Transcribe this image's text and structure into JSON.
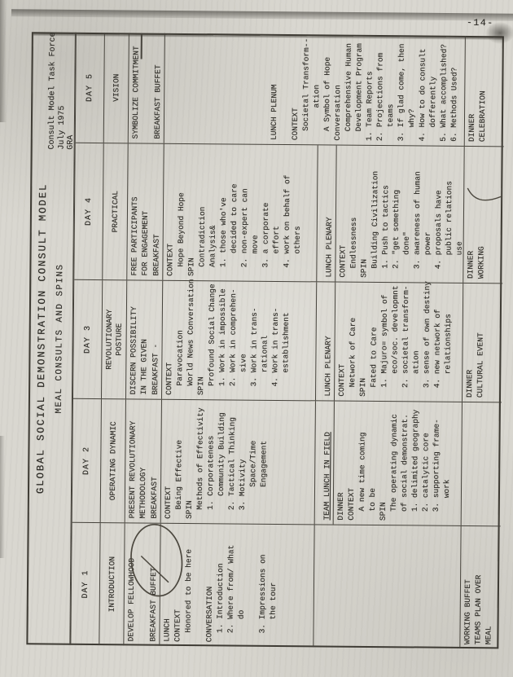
{
  "page_number": "-14-",
  "header": {
    "title": "GLOBAL SOCIAL DEMONSTRATION CONSULT MODEL",
    "subtitle": "MEAL CONSULTS AND SPINS",
    "credit_lines": [
      "Consult Model Task Force",
      "July 1975",
      "GRA"
    ]
  },
  "table": {
    "days": [
      {
        "label": "DAY 1",
        "theme": [
          "INTRODUCTION"
        ],
        "strategy": [
          "DEVELOP FELLOWHOOD"
        ],
        "meal_label": "BREAKFAST BUFFET",
        "meal_label_annotation": "hand-drawn-circle",
        "breakfast": [
          "LUNCH",
          "CONTEXT",
          "  Honored to be here",
          "",
          "CONVERSATION",
          "  1. Introduction",
          "  2. Where from/ What",
          "     do",
          "",
          "  3. Impressions on",
          "     the tour"
        ],
        "lunch_label": "",
        "lunch": [],
        "lunch_zone_empty": true,
        "dinner": [
          "WORKING BUFFET",
          "TEAMS PLAN OVER",
          "MEAL"
        ]
      },
      {
        "label": "DAY 2",
        "theme": [
          "OPERATING DYNAMIC"
        ],
        "strategy": [
          "PRESENT REVOLUTIONARY",
          "METHODOLOGY"
        ],
        "meal_label": "BREAKFAST",
        "breakfast": [
          "CONTEXT",
          "  Being Effective",
          "SPIN",
          "  Methods of Effectivity",
          "  1. Corporateness",
          "     Community Building",
          "  2. Tactical Thinking",
          "  3. Motivity",
          "       Space/Time",
          "       Engagement"
        ],
        "lunch_label": "TEAM LUNCH IN FIELD",
        "lunch_label_underline": true,
        "lunch": [
          "DINNER",
          "CONTEXT",
          "  A new time coming",
          "  to be",
          "SPIN",
          "  The operating dynamic",
          "  of social demonstrat.",
          "  1. delimited geography",
          "  2. catalytic core",
          "  3. supporting frame-",
          "     work"
        ],
        "dinner": []
      },
      {
        "label": "DAY 3",
        "theme": [
          "REVOLUTIONARY",
          "POSTURE"
        ],
        "strategy": [
          "DISCERN POSSIBILITY",
          "IN THE GIVEN"
        ],
        "meal_label": "BREAKFAST -",
        "breakfast": [
          "CONTEXT",
          "  Paravocation",
          "  World News Conversation",
          "SPIN",
          "  Profound Social Change",
          "  1. Work in impossible",
          "  2. Work in comprehen-",
          "     sive",
          "  3. Work in trans-",
          "     rational",
          "  4. Work in trans-",
          "     establishment"
        ],
        "lunch_label": "LUNCH PLENARY",
        "lunch": [
          "CONTEXT",
          "  Network of Care",
          "SPIN",
          "  Fated to Care",
          "  1. Majuro= symbol of",
          "     eco/soc. developmnt",
          "  2. societal transform-",
          "     ation",
          "  3. sense of own destiny",
          "  4. new network of",
          "     relationships"
        ],
        "dinner": [
          "DINNER",
          "CULTURAL EVENT"
        ]
      },
      {
        "label": "DAY 4",
        "theme": [
          "PRACTICAL"
        ],
        "strategy": [
          "FREE PARTICIPANTS",
          "FOR ENGAGEMENT"
        ],
        "meal_label": "BREAKFAST",
        "breakfast": [
          "CONTEXT",
          "  Hope Beyond Hope",
          "SPIN",
          "  Contradiction",
          "  Analysis&",
          "  1. those who've",
          "     decided to care",
          "  2. non-expert can",
          "     move",
          "  3. a corporate",
          "     effort",
          "  4. work on behalf of",
          "     others"
        ],
        "lunch_label": "LUNCH PLENARY",
        "lunch": [
          "CONTEXT",
          "  Endlessness",
          "SPIN",
          "  Building Civilization",
          "  1. Push to tactics",
          "  2. \"get something",
          "     done\"",
          "  3. awareness of human",
          "     power",
          "  4. proposals have",
          "     public relations",
          "     use"
        ],
        "dinner": [
          "DINNER",
          "WORKING"
        ]
      },
      {
        "label": "DAY 5",
        "theme": [
          "VISION"
        ],
        "strategy": [
          "SYMBOLIZE COMMITMENT"
        ],
        "meal_label": "BREAKFAST BUFFET",
        "merged_meal_zone": true,
        "merged_lines": [
          "LUNCH PLENUM",
          "",
          "CONTEXT",
          "  Societal Transform--",
          "       ation",
          "  A Symbol of Hope",
          "Conversation",
          "  Comprehensive Human",
          "  Development Program",
          "1. Team Reports",
          "2. Projections from",
          "   teams",
          "3. If glad come, then",
          "   why?",
          "4. How to do consult",
          "   dofferently",
          "5. What accomplished?",
          "6. Methods Used?"
        ],
        "dinner": [
          "DINNER",
          "CELEBRATION"
        ]
      }
    ]
  }
}
